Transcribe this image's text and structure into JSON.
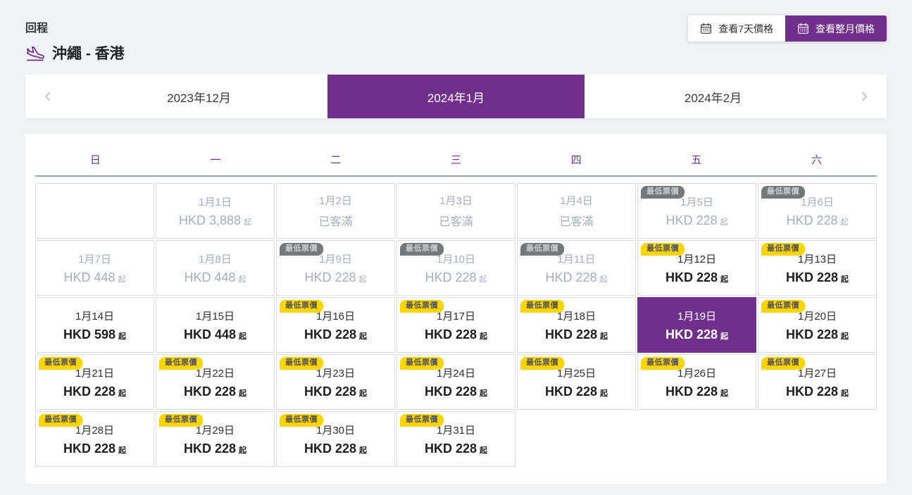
{
  "header": {
    "trip_label": "回程",
    "route": "沖繩 - 香港",
    "view_7day_label": "查看7天價格",
    "view_month_label": "查看整月價格"
  },
  "month_nav": {
    "tabs": [
      {
        "label": "2023年12月",
        "selected": false
      },
      {
        "label": "2024年1月",
        "selected": true
      },
      {
        "label": "2024年2月",
        "selected": false
      }
    ]
  },
  "calendar": {
    "weekdays": [
      "日",
      "一",
      "二",
      "三",
      "四",
      "五",
      "六"
    ],
    "badge_label": "最低票價",
    "soldout_label": "已客滿",
    "price_suffix": "起",
    "cells": [
      {
        "type": "empty"
      },
      {
        "type": "day",
        "date": "1月1日",
        "price": "HKD 3,888",
        "state": "disabled",
        "badge": null
      },
      {
        "type": "day",
        "date": "1月2日",
        "soldout": true,
        "state": "disabled",
        "badge": null
      },
      {
        "type": "day",
        "date": "1月3日",
        "soldout": true,
        "state": "disabled",
        "badge": null
      },
      {
        "type": "day",
        "date": "1月4日",
        "soldout": true,
        "state": "disabled",
        "badge": null
      },
      {
        "type": "day",
        "date": "1月5日",
        "price": "HKD 228",
        "state": "disabled",
        "badge": "gray"
      },
      {
        "type": "day",
        "date": "1月6日",
        "price": "HKD 228",
        "state": "disabled",
        "badge": "gray"
      },
      {
        "type": "day",
        "date": "1月7日",
        "price": "HKD 448",
        "state": "disabled",
        "badge": null
      },
      {
        "type": "day",
        "date": "1月8日",
        "price": "HKD 448",
        "state": "disabled",
        "badge": null
      },
      {
        "type": "day",
        "date": "1月9日",
        "price": "HKD 228",
        "state": "disabled",
        "badge": "gray"
      },
      {
        "type": "day",
        "date": "1月10日",
        "price": "HKD 228",
        "state": "disabled",
        "badge": "gray"
      },
      {
        "type": "day",
        "date": "1月11日",
        "price": "HKD 228",
        "state": "disabled",
        "badge": "gray"
      },
      {
        "type": "day",
        "date": "1月12日",
        "price": "HKD 228",
        "state": "active",
        "badge": "yellow"
      },
      {
        "type": "day",
        "date": "1月13日",
        "price": "HKD 228",
        "state": "active",
        "badge": "yellow"
      },
      {
        "type": "day",
        "date": "1月14日",
        "price": "HKD 598",
        "state": "active",
        "badge": null
      },
      {
        "type": "day",
        "date": "1月15日",
        "price": "HKD 448",
        "state": "active",
        "badge": null
      },
      {
        "type": "day",
        "date": "1月16日",
        "price": "HKD 228",
        "state": "active",
        "badge": "yellow"
      },
      {
        "type": "day",
        "date": "1月17日",
        "price": "HKD 228",
        "state": "active",
        "badge": "yellow"
      },
      {
        "type": "day",
        "date": "1月18日",
        "price": "HKD 228",
        "state": "active",
        "badge": "yellow"
      },
      {
        "type": "day",
        "date": "1月19日",
        "price": "HKD 228",
        "state": "selected",
        "badge": null
      },
      {
        "type": "day",
        "date": "1月20日",
        "price": "HKD 228",
        "state": "active",
        "badge": "yellow"
      },
      {
        "type": "day",
        "date": "1月21日",
        "price": "HKD 228",
        "state": "active",
        "badge": "yellow"
      },
      {
        "type": "day",
        "date": "1月22日",
        "price": "HKD 228",
        "state": "active",
        "badge": "yellow"
      },
      {
        "type": "day",
        "date": "1月23日",
        "price": "HKD 228",
        "state": "active",
        "badge": "yellow"
      },
      {
        "type": "day",
        "date": "1月24日",
        "price": "HKD 228",
        "state": "active",
        "badge": "yellow"
      },
      {
        "type": "day",
        "date": "1月25日",
        "price": "HKD 228",
        "state": "active",
        "badge": "yellow"
      },
      {
        "type": "day",
        "date": "1月26日",
        "price": "HKD 228",
        "state": "active",
        "badge": "yellow"
      },
      {
        "type": "day",
        "date": "1月27日",
        "price": "HKD 228",
        "state": "active",
        "badge": "yellow"
      },
      {
        "type": "day",
        "date": "1月28日",
        "price": "HKD 228",
        "state": "active",
        "badge": "yellow"
      },
      {
        "type": "day",
        "date": "1月29日",
        "price": "HKD 228",
        "state": "active",
        "badge": "yellow"
      },
      {
        "type": "day",
        "date": "1月30日",
        "price": "HKD 228",
        "state": "active",
        "badge": "yellow"
      },
      {
        "type": "day",
        "date": "1月31日",
        "price": "HKD 228",
        "state": "active",
        "badge": "yellow"
      },
      {
        "type": "none"
      },
      {
        "type": "none"
      },
      {
        "type": "none"
      }
    ]
  },
  "colors": {
    "brand_purple": "#702F8A",
    "badge_yellow": "#FFD500",
    "badge_gray": "#75787B",
    "disabled_text": "#A6ADBB",
    "weekday_underline": "#9AA0B6"
  }
}
